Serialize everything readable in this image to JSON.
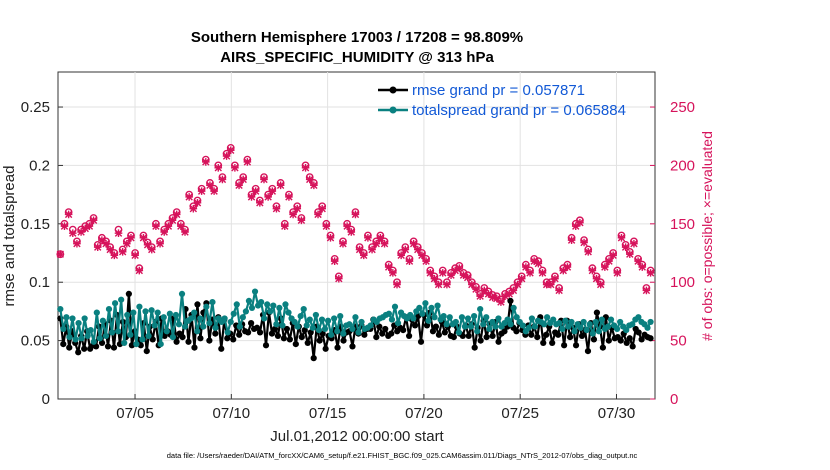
{
  "chart_data": {
    "type": "line",
    "title": "Southern Hemisphere 17003 / 17208 = 98.809%",
    "subtitle": "AIRS_SPECIFIC_HUMIDITY @ 313 hPa",
    "xlabel": "Jul.01,2012 00:00:00 start",
    "ylabel": "rmse and totalspread",
    "y2label": "# of obs: o=possible; ×=evaluated",
    "footnote": "data file: /Users/raeder/DAI/ATM_forcXX/CAM6_setup/f.e21.FHIST_BGC.f09_025.CAM6assim.011/Diags_NTrS_2012-07/obs_diag_output.nc",
    "x_tick_labels": [
      "07/05",
      "07/10",
      "07/15",
      "07/20",
      "07/25",
      "07/30"
    ],
    "x_tick_days": [
      5,
      10,
      15,
      20,
      25,
      30
    ],
    "xlim_days": [
      1.0,
      32.0
    ],
    "y_ticks": [
      "0",
      "0.05",
      "0.1",
      "0.15",
      "0.2",
      "0.25"
    ],
    "ylim": [
      0,
      0.28
    ],
    "y2_ticks": [
      "0",
      "50",
      "100",
      "150",
      "200",
      "250"
    ],
    "y2lim": [
      0,
      280
    ],
    "legend_position": "top-right",
    "colors": {
      "rmse": "#000000",
      "spread": "#0a8080",
      "obs": "#d6135b",
      "legend_text": "#1259d6"
    },
    "series": [
      {
        "name": "rmse grand pr = 0.057871",
        "values": [
          0.069,
          0.047,
          0.062,
          0.044,
          0.058,
          0.048,
          0.04,
          0.054,
          0.043,
          0.058,
          0.043,
          0.046,
          0.045,
          0.062,
          0.048,
          0.064,
          0.045,
          0.067,
          0.044,
          0.072,
          0.047,
          0.066,
          0.053,
          0.09,
          0.046,
          0.058,
          0.051,
          0.046,
          0.065,
          0.041,
          0.062,
          0.051,
          0.066,
          0.046,
          0.069,
          0.054,
          0.058,
          0.055,
          0.069,
          0.049,
          0.056,
          0.053,
          0.077,
          0.049,
          0.072,
          0.044,
          0.081,
          0.052,
          0.074,
          0.082,
          0.05,
          0.068,
          0.056,
          0.07,
          0.043,
          0.068,
          0.052,
          0.056,
          0.051,
          0.063,
          0.055,
          0.064,
          0.058,
          0.057,
          0.065,
          0.06,
          0.061,
          0.057,
          0.072,
          0.046,
          0.074,
          0.056,
          0.06,
          0.054,
          0.069,
          0.052,
          0.06,
          0.051,
          0.065,
          0.047,
          0.062,
          0.053,
          0.059,
          0.048,
          0.057,
          0.035,
          0.062,
          0.05,
          0.056,
          0.043,
          0.054,
          0.052,
          0.059,
          0.044,
          0.062,
          0.05,
          0.057,
          0.058,
          0.045,
          0.062,
          0.056,
          0.063,
          0.055,
          0.06,
          0.06,
          0.068,
          0.053,
          0.062,
          0.056,
          0.06,
          0.054,
          0.056,
          0.063,
          0.058,
          0.061,
          0.059,
          0.07,
          0.054,
          0.068,
          0.063,
          0.071,
          0.049,
          0.072,
          0.063,
          0.074,
          0.058,
          0.062,
          0.055,
          0.066,
          0.057,
          0.062,
          0.054,
          0.053,
          0.062,
          0.056,
          0.054,
          0.063,
          0.054,
          0.064,
          0.044,
          0.061,
          0.05,
          0.067,
          0.053,
          0.064,
          0.054,
          0.066,
          0.049,
          0.056,
          0.058,
          0.062,
          0.084,
          0.061,
          0.058,
          0.065,
          0.059,
          0.055,
          0.063,
          0.055,
          0.062,
          0.053,
          0.07,
          0.048,
          0.055,
          0.062,
          0.048,
          0.057,
          0.055,
          0.067,
          0.046,
          0.067,
          0.053,
          0.061,
          0.046,
          0.064,
          0.054,
          0.059,
          0.041,
          0.065,
          0.051,
          0.074,
          0.062,
          0.044,
          0.07,
          0.05,
          0.061,
          0.052,
          0.053,
          0.05,
          0.056,
          0.048,
          0.052,
          0.045,
          0.06,
          0.057,
          0.051,
          0.055,
          0.053,
          0.052
        ]
      },
      {
        "name": "totalspread grand pr = 0.065884",
        "values": [
          0.077,
          0.06,
          0.07,
          0.053,
          0.069,
          0.051,
          0.065,
          0.052,
          0.069,
          0.054,
          0.059,
          0.049,
          0.074,
          0.052,
          0.067,
          0.054,
          0.077,
          0.057,
          0.082,
          0.058,
          0.085,
          0.048,
          0.072,
          0.055,
          0.074,
          0.047,
          0.079,
          0.051,
          0.075,
          0.054,
          0.076,
          0.063,
          0.074,
          0.047,
          0.07,
          0.058,
          0.073,
          0.053,
          0.072,
          0.064,
          0.09,
          0.062,
          0.067,
          0.069,
          0.074,
          0.058,
          0.069,
          0.062,
          0.079,
          0.065,
          0.083,
          0.061,
          0.069,
          0.066,
          0.069,
          0.057,
          0.066,
          0.073,
          0.081,
          0.062,
          0.07,
          0.075,
          0.084,
          0.078,
          0.092,
          0.08,
          0.083,
          0.069,
          0.081,
          0.075,
          0.08,
          0.064,
          0.078,
          0.063,
          0.081,
          0.074,
          0.069,
          0.066,
          0.062,
          0.071,
          0.077,
          0.063,
          0.068,
          0.061,
          0.072,
          0.059,
          0.068,
          0.06,
          0.067,
          0.055,
          0.069,
          0.058,
          0.071,
          0.056,
          0.063,
          0.064,
          0.06,
          0.07,
          0.057,
          0.066,
          0.06,
          0.061,
          0.063,
          0.068,
          0.066,
          0.069,
          0.07,
          0.072,
          0.073,
          0.068,
          0.079,
          0.065,
          0.074,
          0.071,
          0.069,
          0.072,
          0.069,
          0.075,
          0.078,
          0.073,
          0.082,
          0.067,
          0.078,
          0.07,
          0.08,
          0.068,
          0.071,
          0.064,
          0.07,
          0.064,
          0.066,
          0.057,
          0.07,
          0.062,
          0.069,
          0.062,
          0.071,
          0.058,
          0.077,
          0.064,
          0.07,
          0.06,
          0.066,
          0.062,
          0.069,
          0.062,
          0.065,
          0.068,
          0.064,
          0.078,
          0.07,
          0.066,
          0.063,
          0.058,
          0.061,
          0.069,
          0.062,
          0.067,
          0.066,
          0.064,
          0.07,
          0.065,
          0.068,
          0.064,
          0.065,
          0.06,
          0.067,
          0.062,
          0.066,
          0.058,
          0.064,
          0.061,
          0.066,
          0.059,
          0.064,
          0.056,
          0.066,
          0.058,
          0.068,
          0.06,
          0.062,
          0.068,
          0.063,
          0.06,
          0.066,
          0.062,
          0.059,
          0.063,
          0.064,
          0.068,
          0.07,
          0.066,
          0.064,
          0.061,
          0.066
        ]
      }
    ],
    "obs_possible": [
      124,
      150,
      160,
      145,
      135,
      145,
      148,
      150,
      155,
      132,
      138,
      135,
      130,
      125,
      145,
      128,
      135,
      140,
      125,
      112,
      140,
      134,
      130,
      150,
      135,
      145,
      150,
      155,
      160,
      150,
      145,
      175,
      165,
      170,
      180,
      205,
      185,
      180,
      200,
      190,
      210,
      215,
      200,
      185,
      190,
      205,
      175,
      180,
      170,
      190,
      175,
      180,
      165,
      185,
      150,
      175,
      160,
      165,
      155,
      200,
      190,
      185,
      160,
      165,
      150,
      140,
      120,
      105,
      135,
      150,
      145,
      160,
      130,
      125,
      140,
      130,
      135,
      140,
      135,
      115,
      110,
      100,
      125,
      130,
      120,
      135,
      130,
      125,
      120,
      110,
      105,
      100,
      110,
      100,
      108,
      112,
      114,
      108,
      106,
      100,
      96,
      90,
      95,
      92,
      89,
      88,
      85,
      90,
      92,
      95,
      100,
      105,
      115,
      110,
      120,
      118,
      110,
      100,
      100,
      105,
      95,
      112,
      115,
      138,
      150,
      153,
      136,
      128,
      112,
      105,
      100,
      115,
      120,
      125,
      110,
      140,
      132,
      126,
      135,
      120,
      115,
      95,
      110
    ],
    "obs_evaluated": [
      124,
      148,
      158,
      142,
      133,
      143,
      146,
      148,
      153,
      130,
      136,
      133,
      128,
      123,
      142,
      126,
      133,
      138,
      123,
      110,
      138,
      132,
      128,
      148,
      133,
      143,
      148,
      153,
      158,
      148,
      143,
      173,
      163,
      168,
      178,
      203,
      183,
      178,
      198,
      188,
      208,
      213,
      198,
      183,
      188,
      203,
      173,
      178,
      168,
      188,
      173,
      178,
      163,
      183,
      148,
      173,
      158,
      163,
      153,
      198,
      188,
      183,
      158,
      163,
      148,
      138,
      118,
      103,
      133,
      148,
      143,
      158,
      128,
      123,
      138,
      128,
      133,
      138,
      133,
      113,
      108,
      98,
      123,
      128,
      118,
      133,
      128,
      123,
      118,
      108,
      103,
      98,
      108,
      98,
      106,
      110,
      112,
      106,
      104,
      98,
      94,
      88,
      93,
      90,
      87,
      86,
      83,
      88,
      90,
      93,
      98,
      103,
      113,
      108,
      118,
      116,
      108,
      98,
      98,
      103,
      93,
      110,
      113,
      136,
      148,
      151,
      134,
      126,
      110,
      103,
      98,
      113,
      118,
      123,
      108,
      138,
      130,
      124,
      133,
      118,
      113,
      93,
      108
    ]
  }
}
